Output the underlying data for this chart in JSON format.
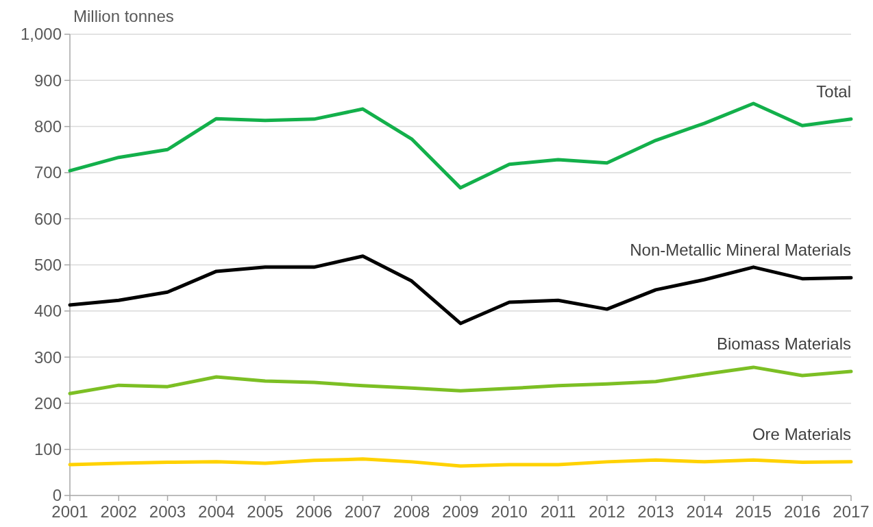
{
  "chart_data": {
    "type": "line",
    "ylabel": "Million tonnes",
    "x": [
      2001,
      2002,
      2003,
      2004,
      2005,
      2006,
      2007,
      2008,
      2009,
      2010,
      2011,
      2012,
      2013,
      2014,
      2015,
      2016,
      2017
    ],
    "xlim": [
      2001,
      2017
    ],
    "xticks": [
      2001,
      2002,
      2003,
      2004,
      2005,
      2006,
      2007,
      2008,
      2009,
      2010,
      2011,
      2012,
      2013,
      2014,
      2015,
      2016,
      2017
    ],
    "ylim": [
      0,
      1000
    ],
    "yticks": [
      0,
      100,
      200,
      300,
      400,
      500,
      600,
      700,
      800,
      900,
      {
        "value": 1000,
        "label": "1,000"
      }
    ],
    "grid": "y",
    "series": [
      {
        "name": "Total",
        "color": "#13b04b",
        "values": [
          704,
          733,
          750,
          817,
          813,
          816,
          838,
          773,
          667,
          718,
          728,
          721,
          770,
          807,
          850,
          802,
          816
        ]
      },
      {
        "name": "Non-Metallic Mineral Materials",
        "color": "#000000",
        "values": [
          413,
          423,
          441,
          486,
          495,
          495,
          519,
          465,
          373,
          419,
          423,
          404,
          446,
          468,
          495,
          470,
          472
        ]
      },
      {
        "name": "Biomass Materials",
        "color": "#7cbf24",
        "values": [
          221,
          239,
          236,
          257,
          248,
          245,
          238,
          233,
          227,
          232,
          238,
          242,
          247,
          263,
          278,
          260,
          269
        ]
      },
      {
        "name": "Ore Materials",
        "color": "#ffd200",
        "values": [
          67,
          70,
          72,
          73,
          70,
          76,
          79,
          73,
          64,
          67,
          67,
          73,
          77,
          73,
          77,
          72,
          73
        ]
      }
    ]
  }
}
